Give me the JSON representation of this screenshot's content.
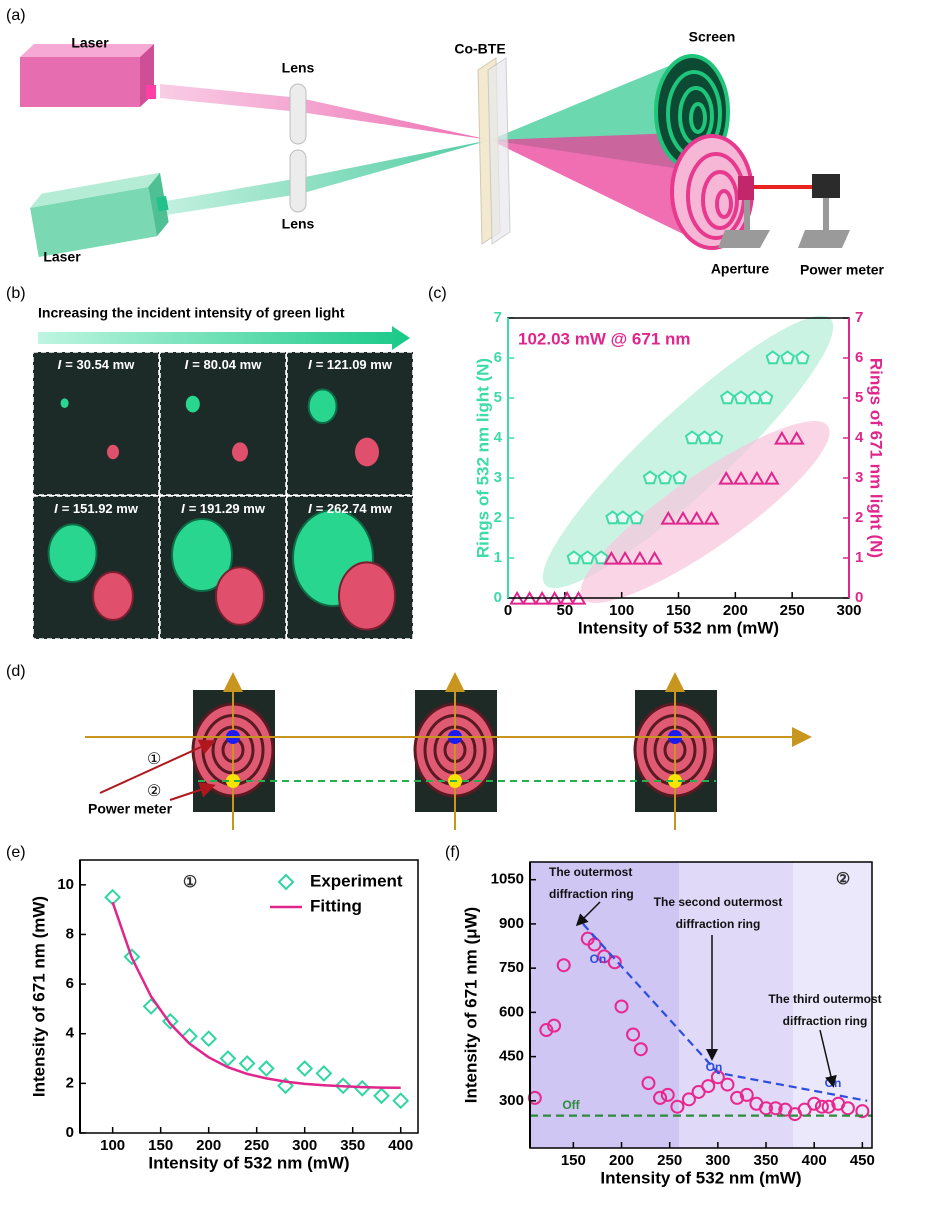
{
  "panel_labels": {
    "a": "(a)",
    "b": "(b)",
    "c": "(c)",
    "d": "(d)",
    "e": "(e)",
    "f": "(f)"
  },
  "panel_a": {
    "laser_top": "Laser",
    "laser_bottom": "Laser",
    "lens_top": "Lens",
    "lens_bottom": "Lens",
    "sample": "Co-BTE",
    "screen": "Screen",
    "aperture": "Aperture",
    "power_meter": "Power meter"
  },
  "panel_b": {
    "caption": "Increasing the incident intensity of green light",
    "images": [
      {
        "symbol": "I",
        "value": "= 30.54 mw"
      },
      {
        "symbol": "I",
        "value": "= 80.04 mw"
      },
      {
        "symbol": "I",
        "value": "= 121.09 mw"
      },
      {
        "symbol": "I",
        "value": "= 151.92 mw"
      },
      {
        "symbol": "I",
        "value": "= 191.29 mw"
      },
      {
        "symbol": "I",
        "value": "= 262.74 mw"
      }
    ]
  },
  "panel_d": {
    "marker_1": "①",
    "marker_2": "②",
    "power_meter": "Power meter"
  },
  "chart_data": [
    {
      "type": "scatter",
      "xlabel": "Intensity of 532 nm (mW)",
      "ylabel": "Rings of 532 nm light (N)",
      "y2label": "Rings of 671 nm light (N)",
      "annotations": [
        {
          "lines": [
            "102.03 mW @ 671 nm"
          ]
        }
      ],
      "xlim": [
        0,
        300
      ],
      "xticks": [
        0,
        50,
        100,
        150,
        200,
        250,
        300
      ],
      "ylim": [
        0,
        7
      ],
      "yticks": [
        0,
        1,
        2,
        3,
        4,
        5,
        6,
        7
      ],
      "y2lim": [
        0,
        7
      ],
      "y2ticks": [
        0,
        1,
        2,
        3,
        4,
        5,
        6,
        7
      ],
      "series": [
        {
          "color": "#3ddba5",
          "marker": "pentagon",
          "x": [
            58,
            70,
            82,
            92,
            101,
            113,
            125,
            138,
            151,
            162,
            173,
            183,
            193,
            205,
            217,
            227,
            233,
            246,
            259
          ],
          "values": [
            1,
            1,
            1,
            2,
            2,
            2,
            3,
            3,
            3,
            4,
            4,
            4,
            5,
            5,
            5,
            5,
            6,
            6,
            6
          ]
        },
        {
          "color": "#e0268c",
          "marker": "triangle",
          "axis": "y2",
          "x": [
            8,
            19,
            30,
            41,
            52,
            62,
            91,
            103,
            116,
            129,
            141,
            154,
            166,
            179,
            192,
            205,
            219,
            232,
            241,
            254
          ],
          "values": [
            0,
            0,
            0,
            0,
            0,
            0,
            1,
            1,
            1,
            1,
            2,
            2,
            2,
            2,
            3,
            3,
            3,
            3,
            4,
            4
          ]
        }
      ]
    },
    {
      "type": "scatter",
      "xlabel": "Intensity of 532 nm (mW)",
      "ylabel": "Intensity of 671 nm (mW)",
      "annotations": [
        {
          "lines": [
            "①"
          ]
        }
      ],
      "xlim": [
        66,
        418
      ],
      "xticks": [
        100,
        150,
        200,
        250,
        300,
        350,
        400
      ],
      "ylim": [
        0,
        11
      ],
      "yticks": [
        0,
        2,
        4,
        6,
        8,
        10
      ],
      "legend": "upper right",
      "series": [
        {
          "name": "Experiment",
          "color": "#2fd6a2",
          "marker": "diamond",
          "x": [
            100,
            120,
            140,
            160,
            180,
            200,
            220,
            240,
            260,
            280,
            300,
            320,
            340,
            360,
            380,
            400
          ],
          "values": [
            9.5,
            7.1,
            5.1,
            4.5,
            3.9,
            3.8,
            3.0,
            2.8,
            2.6,
            1.9,
            2.6,
            2.4,
            1.9,
            1.8,
            1.5,
            1.3
          ]
        },
        {
          "name": "Fitting",
          "color": "#e0268c",
          "marker": "line",
          "x": [
            100,
            120,
            140,
            160,
            180,
            200,
            220,
            240,
            260,
            280,
            300,
            320,
            340,
            360,
            380,
            400
          ],
          "values": [
            9.3,
            7.05,
            5.5,
            4.4,
            3.6,
            3.05,
            2.65,
            2.38,
            2.2,
            2.07,
            1.98,
            1.92,
            1.88,
            1.85,
            1.83,
            1.82
          ]
        }
      ]
    },
    {
      "type": "scatter",
      "xlabel": "Intensity of 532 nm (mW)",
      "ylabel": "Intensity of 671 nm (μW)",
      "annotations": [
        {
          "lines": [
            "The outermost",
            "diffraction ring"
          ]
        },
        {
          "lines": [
            "The second outermost",
            "diffraction ring"
          ]
        },
        {
          "lines": [
            "The third outermost",
            "diffraction ring"
          ]
        },
        {
          "lines": [
            "On"
          ]
        },
        {
          "lines": [
            "On"
          ]
        },
        {
          "lines": [
            "On"
          ]
        },
        {
          "lines": [
            "Off"
          ]
        },
        {
          "lines": [
            "②"
          ]
        }
      ],
      "xlim": [
        105,
        460
      ],
      "xticks": [
        150,
        200,
        250,
        300,
        350,
        400,
        450
      ],
      "ylim": [
        140,
        1110
      ],
      "yticks": [
        300,
        450,
        600,
        750,
        900,
        1050
      ],
      "regions": [
        {
          "x": [
            105,
            260
          ],
          "color": "#cfc6f4"
        },
        {
          "x": [
            260,
            378
          ],
          "color": "#e0daf8"
        },
        {
          "x": [
            378,
            460
          ],
          "color": "#ece8fb"
        }
      ],
      "series": [
        {
          "color": "#e8288e",
          "marker": "circle",
          "x": [
            110,
            122,
            130,
            140,
            165,
            172,
            182,
            193,
            200,
            212,
            220,
            228,
            240,
            248,
            258,
            270,
            280,
            290,
            300,
            310,
            320,
            330,
            340,
            350,
            360,
            370,
            380,
            390,
            400,
            408,
            415,
            425,
            435,
            450
          ],
          "values": [
            310,
            540,
            555,
            760,
            850,
            830,
            790,
            770,
            620,
            525,
            475,
            360,
            310,
            320,
            280,
            305,
            330,
            350,
            380,
            355,
            310,
            320,
            290,
            275,
            275,
            270,
            255,
            270,
            290,
            280,
            280,
            290,
            275,
            265
          ]
        },
        {
          "color": "#2b4de0",
          "marker": "dashed-line",
          "x": [
            160,
            300,
            455
          ],
          "values": [
            900,
            395,
            300
          ]
        },
        {
          "color": "#2e8b3e",
          "marker": "dashed-line",
          "x": [
            105,
            460
          ],
          "values": [
            250,
            250
          ]
        }
      ]
    }
  ]
}
